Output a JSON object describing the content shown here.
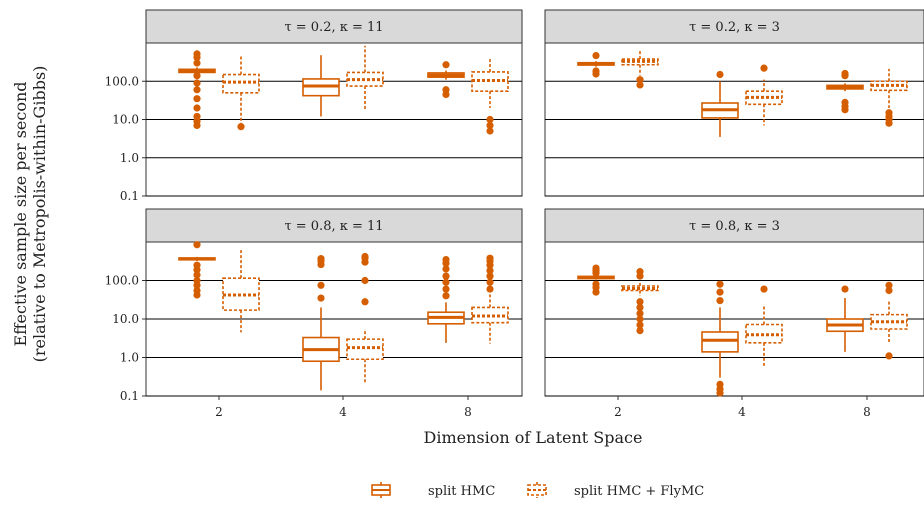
{
  "chart_data": {
    "type": "box",
    "xlabel": "Dimension of Latent Space",
    "ylabel_line1": "Effective sample size per second",
    "ylabel_line2": "(relative to Metropolis-within-Gibbs)",
    "y_scale": "log10",
    "ylim": [
      0.1,
      1000
    ],
    "y_ticks": [
      "0.1",
      "1.0",
      "10.0",
      "100.0"
    ],
    "y_tick_values": [
      0.1,
      1,
      10,
      100
    ],
    "categories": [
      "2",
      "4",
      "8"
    ],
    "color": "#D55E00",
    "legend": {
      "position": "bottom",
      "entries": [
        {
          "name": "split HMC",
          "dash": "solid"
        },
        {
          "name": "split HMC + FlyMC",
          "dash": "dashed"
        }
      ]
    },
    "panels": [
      {
        "title": "τ = 0.2, κ = 11",
        "series": [
          {
            "name": "split HMC",
            "boxes": [
              {
                "x": "2",
                "low": 150,
                "q1": 170,
                "median": 185,
                "q3": 205,
                "high": 230,
                "outliers": [
                  7,
                  9,
                  12,
                  20,
                  35,
                  60,
                  90,
                  140,
                  300,
                  420,
                  520
                ]
              },
              {
                "x": "4",
                "low": 12,
                "q1": 42,
                "median": 75,
                "q3": 115,
                "high": 480,
                "outliers": []
              },
              {
                "x": "8",
                "low": 110,
                "q1": 128,
                "median": 145,
                "q3": 165,
                "high": 190,
                "outliers": [
                  45,
                  60,
                  270
                ]
              }
            ]
          },
          {
            "name": "split HMC + FlyMC",
            "boxes": [
              {
                "x": "2",
                "low": 8,
                "q1": 50,
                "median": 95,
                "q3": 150,
                "high": 480,
                "outliers": [
                  6.5
                ]
              },
              {
                "x": "4",
                "low": 18,
                "q1": 75,
                "median": 110,
                "q3": 170,
                "high": 850,
                "outliers": []
              },
              {
                "x": "8",
                "low": 20,
                "q1": 55,
                "median": 105,
                "q3": 175,
                "high": 380,
                "outliers": [
                  5,
                  7,
                  10
                ]
              }
            ]
          }
        ]
      },
      {
        "title": "τ = 0.2, κ = 3",
        "series": [
          {
            "name": "split HMC",
            "boxes": [
              {
                "x": "2",
                "low": 240,
                "q1": 265,
                "median": 285,
                "q3": 305,
                "high": 335,
                "outliers": [
                  155,
                  185,
                  470
                ]
              },
              {
                "x": "4",
                "low": 3.5,
                "q1": 11,
                "median": 18,
                "q3": 27,
                "high": 100,
                "outliers": [
                  150
                ]
              },
              {
                "x": "8",
                "low": 55,
                "q1": 63,
                "median": 70,
                "q3": 78,
                "high": 88,
                "outliers": [
                  18,
                  22,
                  28,
                  140,
                  160
                ]
              }
            ]
          },
          {
            "name": "split HMC + FlyMC",
            "boxes": [
              {
                "x": "2",
                "low": 140,
                "q1": 270,
                "median": 330,
                "q3": 380,
                "high": 620,
                "outliers": [
                  80,
                  110
                ]
              },
              {
                "x": "4",
                "low": 7,
                "q1": 25,
                "median": 38,
                "q3": 55,
                "high": 110,
                "outliers": [
                  220
                ]
              },
              {
                "x": "8",
                "low": 20,
                "q1": 58,
                "median": 78,
                "q3": 100,
                "high": 210,
                "outliers": [
                  8,
                  10,
                  12,
                  15
                ]
              }
            ]
          }
        ]
      },
      {
        "title": "τ = 0.8, κ = 11",
        "series": [
          {
            "name": "split HMC",
            "boxes": [
              {
                "x": "2",
                "low": 320,
                "q1": 345,
                "median": 365,
                "q3": 385,
                "high": 410,
                "outliers": [
                  42,
                  55,
                  75,
                  100,
                  140,
                  190,
                  250,
                  850
                ]
              },
              {
                "x": "4",
                "low": 0.14,
                "q1": 0.8,
                "median": 1.6,
                "q3": 3.3,
                "high": 20,
                "outliers": [
                  35,
                  75,
                  260,
                  320,
                  370
                ]
              },
              {
                "x": "8",
                "low": 2.4,
                "q1": 7.5,
                "median": 11,
                "q3": 15,
                "high": 27,
                "outliers": [
                  40,
                  60,
                  90,
                  130,
                  200,
                  280,
                  350
                ]
              }
            ]
          },
          {
            "name": "split HMC + FlyMC",
            "boxes": [
              {
                "x": "2",
                "low": 4.5,
                "q1": 17,
                "median": 42,
                "q3": 115,
                "high": 680,
                "outliers": []
              },
              {
                "x": "4",
                "low": 0.22,
                "q1": 0.9,
                "median": 1.8,
                "q3": 3.0,
                "high": 5.5,
                "outliers": [
                  28,
                  100,
                  300,
                  380,
                  420
                ]
              },
              {
                "x": "8",
                "low": 2.3,
                "q1": 8,
                "median": 12,
                "q3": 20,
                "high": 45,
                "outliers": [
                  60,
                  90,
                  130,
                  180,
                  250,
                  320,
                  380
                ]
              }
            ]
          }
        ]
      },
      {
        "title": "τ = 0.8, κ = 3",
        "series": [
          {
            "name": "split HMC",
            "boxes": [
              {
                "x": "2",
                "low": 105,
                "q1": 112,
                "median": 120,
                "q3": 128,
                "high": 135,
                "outliers": [
                  50,
                  65,
                  80,
                  155,
                  180,
                  210
                ]
              },
              {
                "x": "4",
                "low": 0.3,
                "q1": 1.4,
                "median": 2.8,
                "q3": 4.6,
                "high": 20,
                "outliers": [
                  0.12,
                  0.15,
                  0.2,
                  30,
                  50,
                  80
                ]
              },
              {
                "x": "8",
                "low": 1.4,
                "q1": 4.8,
                "median": 7,
                "q3": 10,
                "high": 35,
                "outliers": [
                  60
                ]
              }
            ]
          },
          {
            "name": "split HMC + FlyMC",
            "boxes": [
              {
                "x": "2",
                "low": 40,
                "q1": 55,
                "median": 62,
                "q3": 72,
                "high": 95,
                "outliers": [
                  5,
                  7,
                  10,
                  14,
                  20,
                  28,
                  130,
                  170
                ]
              },
              {
                "x": "4",
                "low": 0.55,
                "q1": 2.4,
                "median": 3.9,
                "q3": 7.2,
                "high": 22,
                "outliers": [
                  60
                ]
              },
              {
                "x": "8",
                "low": 2.5,
                "q1": 5.5,
                "median": 8.5,
                "q3": 13,
                "high": 30,
                "outliers": [
                  1.1,
                  55,
                  75
                ]
              }
            ]
          }
        ]
      }
    ]
  }
}
